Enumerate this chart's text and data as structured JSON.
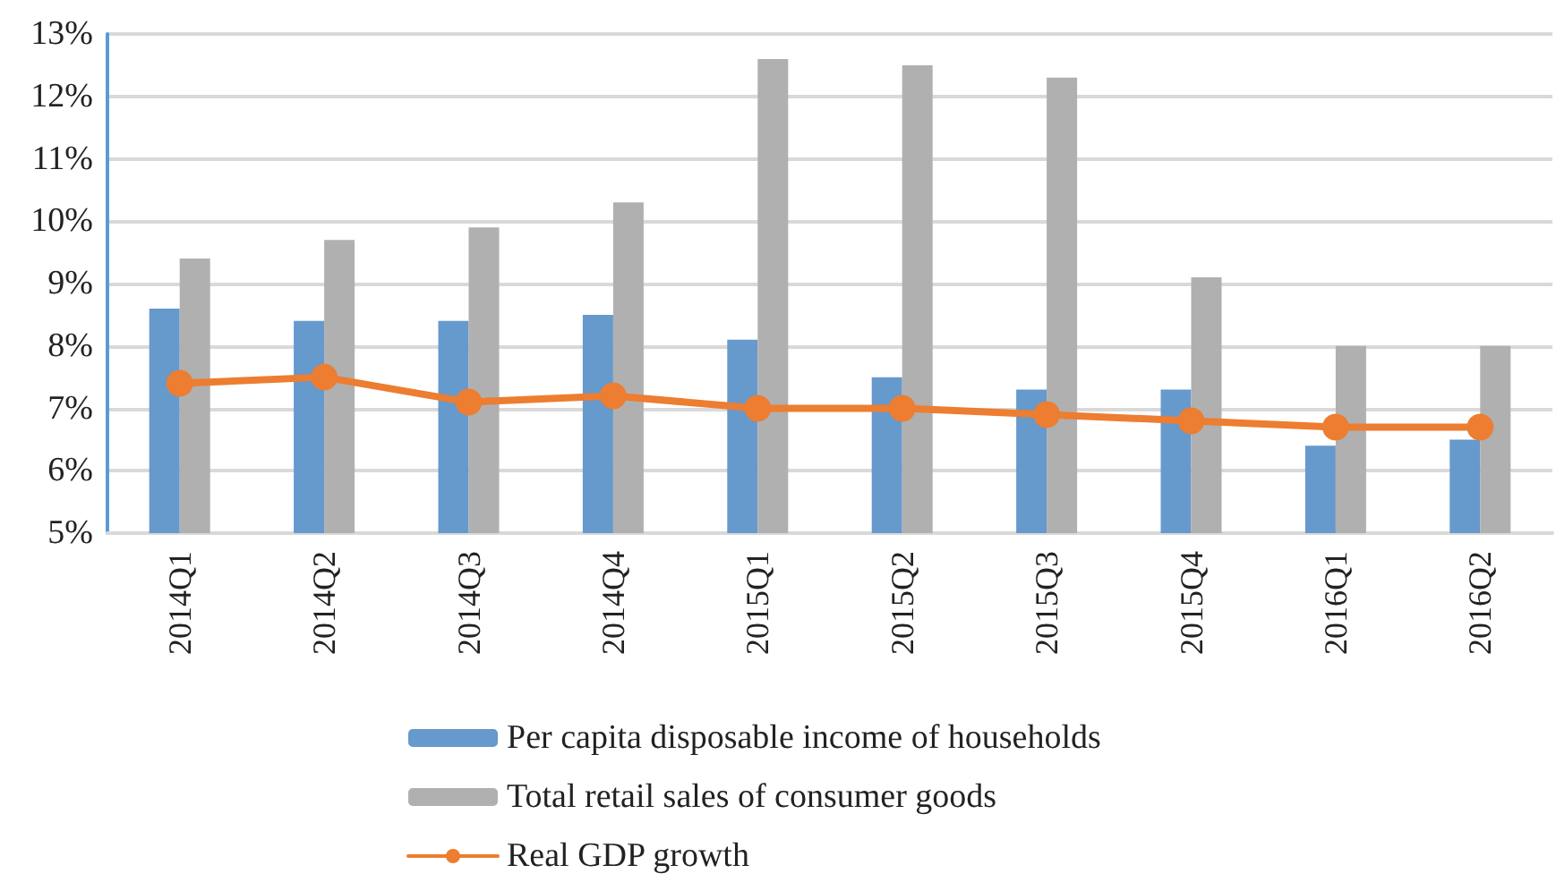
{
  "chart_data": {
    "type": "bar",
    "categories": [
      "2014Q1",
      "2014Q2",
      "2014Q3",
      "2014Q4",
      "2015Q1",
      "2015Q2",
      "2015Q3",
      "2015Q4",
      "2016Q1",
      "2016Q2"
    ],
    "series": [
      {
        "name": "Per capita disposable income of households",
        "color": "#6699cc",
        "values": [
          8.6,
          8.4,
          8.4,
          8.5,
          8.1,
          7.5,
          7.3,
          7.3,
          6.4,
          6.5
        ]
      },
      {
        "name": "Total retail sales of consumer goods",
        "color": "#b0b0b0",
        "values": [
          9.4,
          9.7,
          9.9,
          10.3,
          12.6,
          12.5,
          12.3,
          9.1,
          8.0,
          8.0
        ]
      },
      {
        "name": "Real GDP growth",
        "type": "line",
        "color": "#ed7d31",
        "marker": "circle",
        "line_style": "solid",
        "values": [
          7.4,
          7.5,
          7.1,
          7.2,
          7.0,
          7.0,
          6.9,
          6.8,
          6.7,
          6.7
        ]
      }
    ],
    "ylim": [
      5,
      13
    ],
    "yticks": [
      {
        "value": 5,
        "label": "5%"
      },
      {
        "value": 6,
        "label": "6%"
      },
      {
        "value": 7,
        "label": "7%"
      },
      {
        "value": 8,
        "label": "8%"
      },
      {
        "value": 9,
        "label": "9%"
      },
      {
        "value": 10,
        "label": "10%"
      },
      {
        "value": 11,
        "label": "11%"
      },
      {
        "value": 12,
        "label": "12%"
      },
      {
        "value": 13,
        "label": "13%"
      }
    ],
    "grid": "y",
    "legend": "bottom"
  }
}
